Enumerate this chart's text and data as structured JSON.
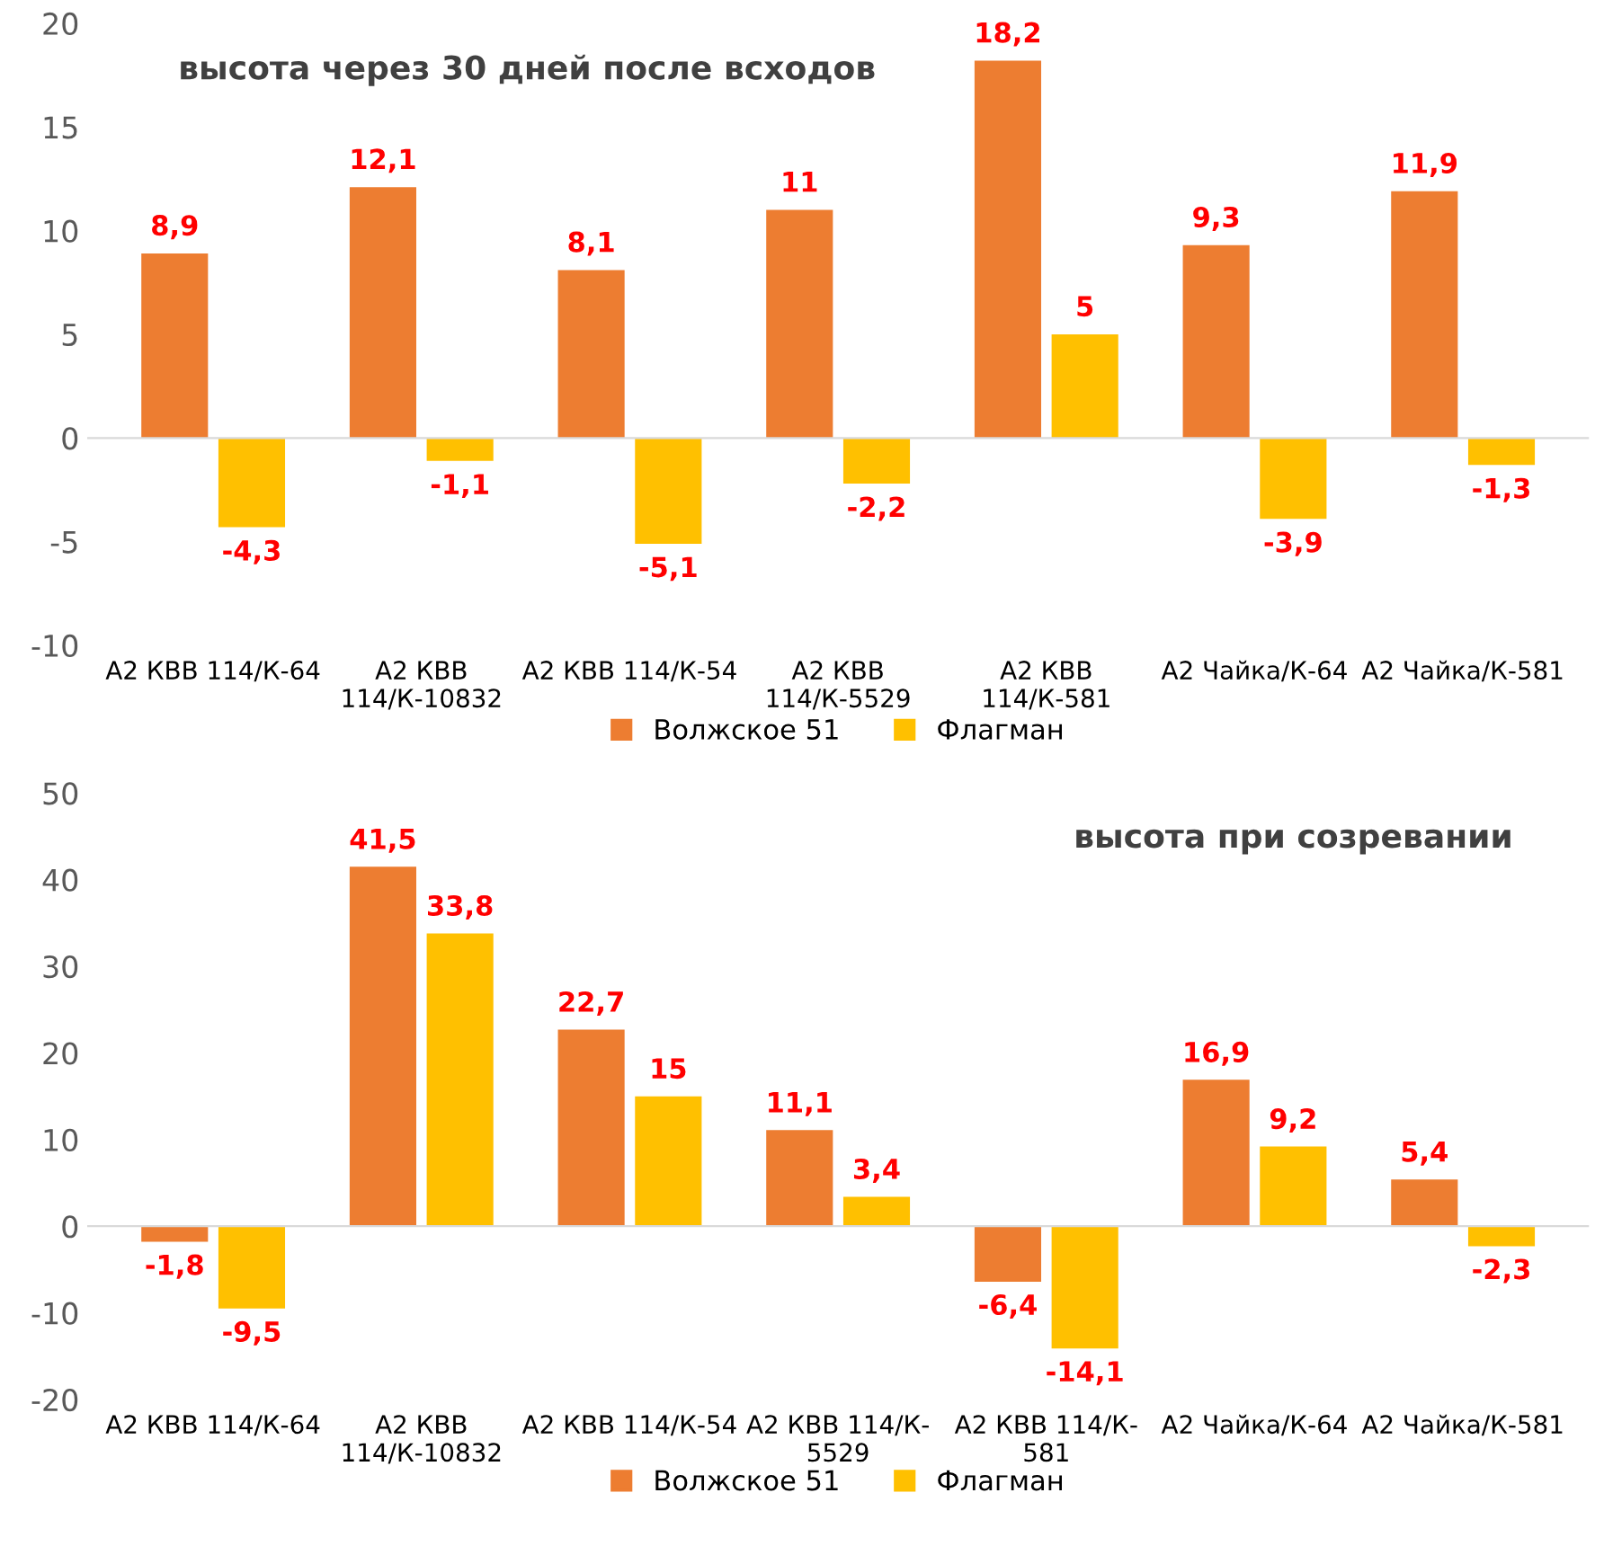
{
  "chart_data": [
    {
      "type": "bar",
      "title": "высота через 30 дней после всходов",
      "categories": [
        "А2 КВВ 114/К-64",
        "А2 КВВ\n114/К-10832",
        "А2 КВВ 114/К-54",
        "А2 КВВ\n114/К-5529",
        "А2 КВВ\n114/К-581",
        "А2 Чайка/К-64",
        "А2 Чайка/К-581"
      ],
      "series": [
        {
          "name": "Волжское 51",
          "color": "#ed7d31",
          "values": [
            8.9,
            12.1,
            8.1,
            11,
            18.2,
            9.3,
            11.9
          ],
          "value_labels": [
            "8,9",
            "12,1",
            "8,1",
            "11",
            "18,2",
            "9,3",
            "11,9"
          ]
        },
        {
          "name": "Флагман",
          "color": "#ffc000",
          "values": [
            -4.3,
            -1.1,
            -5.1,
            -2.2,
            5,
            -3.9,
            -1.3
          ],
          "value_labels": [
            "-4,3",
            "-1,1",
            "-5,1",
            "-2,2",
            "5",
            "-3,9",
            "-1,3"
          ]
        }
      ],
      "ylim": [
        -10,
        20
      ],
      "yticks": [
        -10,
        -5,
        0,
        5,
        10,
        15,
        20
      ],
      "legend": "bottom"
    },
    {
      "type": "bar",
      "title": "высота при созревании",
      "categories": [
        "А2 КВВ 114/К-64",
        "А2 КВВ\n114/К-10832",
        "А2 КВВ 114/К-54",
        "А2 КВВ 114/К-\n5529",
        "А2 КВВ 114/К-\n581",
        "А2 Чайка/К-64",
        "А2 Чайка/К-581"
      ],
      "series": [
        {
          "name": "Волжское 51",
          "color": "#ed7d31",
          "values": [
            -1.8,
            41.5,
            22.7,
            11.1,
            -6.4,
            16.9,
            5.4
          ],
          "value_labels": [
            "-1,8",
            "41,5",
            "22,7",
            "11,1",
            "-6,4",
            "16,9",
            "5,4"
          ]
        },
        {
          "name": "Флагман",
          "color": "#ffc000",
          "values": [
            -9.5,
            33.8,
            15,
            3.4,
            -14.1,
            9.2,
            -2.3
          ],
          "value_labels": [
            "-9,5",
            "33,8",
            "15",
            "3,4",
            "-14,1",
            "9,2",
            "-2,3"
          ]
        }
      ],
      "ylim": [
        -20,
        50
      ],
      "yticks": [
        -20,
        -10,
        0,
        10,
        20,
        30,
        40,
        50
      ],
      "legend": "bottom"
    }
  ]
}
